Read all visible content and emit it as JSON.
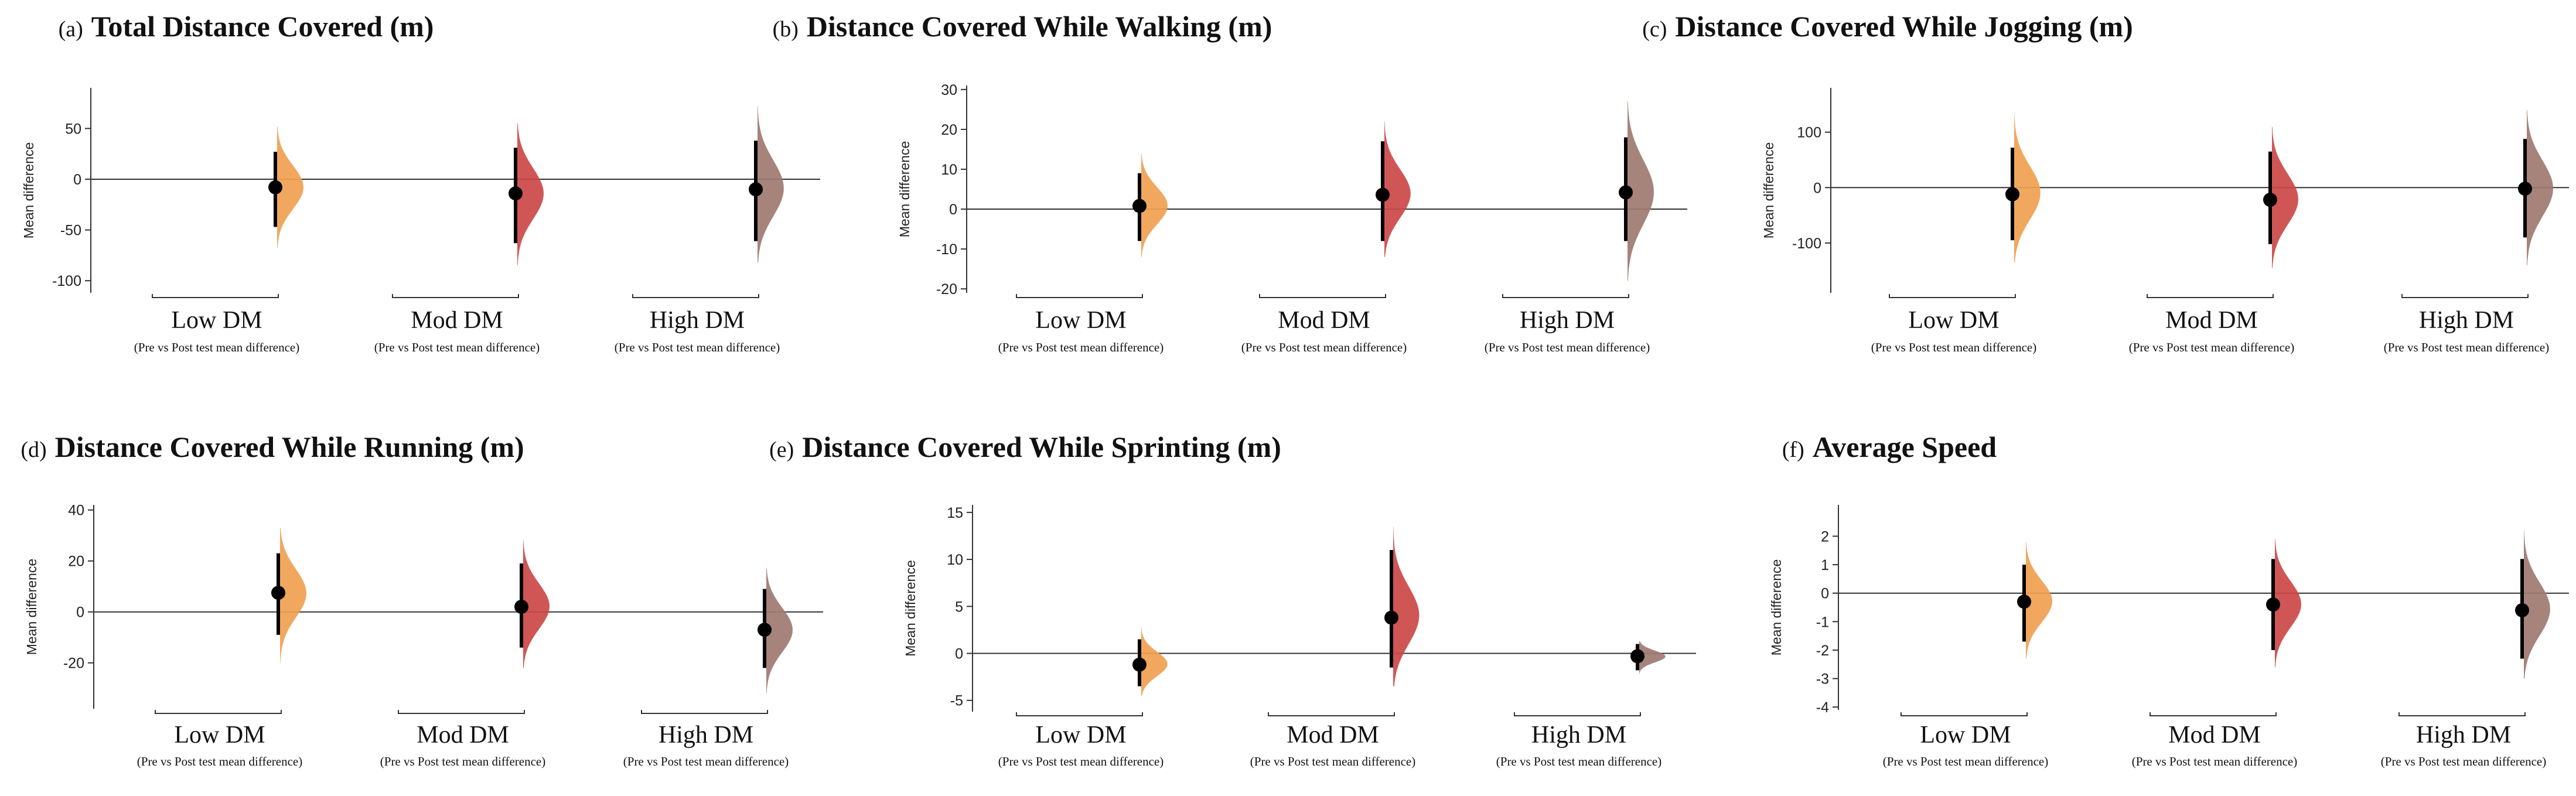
{
  "chart_data": [
    {
      "type": "estimation-plot",
      "letter": "(a)",
      "title": "Total Distance Covered (m)",
      "ylabel": "Mean difference",
      "ylim": [
        -112,
        90
      ],
      "yticks": [
        50,
        0,
        -50,
        -100
      ],
      "groups": [
        {
          "label": "Low DM",
          "sublabel": "(Pre vs Post test mean difference)",
          "color": "#F0A050",
          "mean": -8,
          "ci": [
            -47,
            27
          ],
          "dist": [
            -68,
            52
          ]
        },
        {
          "label": "Mod DM",
          "sublabel": "(Pre vs Post test mean difference)",
          "color": "#CC4848",
          "mean": -14,
          "ci": [
            -63,
            31
          ],
          "dist": [
            -85,
            55
          ]
        },
        {
          "label": "High DM",
          "sublabel": "(Pre vs Post test mean difference)",
          "color": "#9E7A70",
          "mean": -10,
          "ci": [
            -61,
            38
          ],
          "dist": [
            -82,
            72
          ]
        }
      ]
    },
    {
      "type": "estimation-plot",
      "letter": "(b)",
      "title": "Distance Covered While Walking (m)",
      "ylabel": "Mean difference",
      "ylim": [
        -21,
        31
      ],
      "yticks": [
        30,
        20,
        10,
        0,
        -10,
        -20
      ],
      "groups": [
        {
          "label": "Low DM",
          "sublabel": "(Pre vs Post test mean difference)",
          "color": "#F0A050",
          "mean": 0.8,
          "ci": [
            -8,
            9
          ],
          "dist": [
            -12,
            14
          ]
        },
        {
          "label": "Mod DM",
          "sublabel": "(Pre vs Post test mean difference)",
          "color": "#CC4848",
          "mean": 3.6,
          "ci": [
            -8,
            17
          ],
          "dist": [
            -12,
            22
          ]
        },
        {
          "label": "High DM",
          "sublabel": "(Pre vs Post test mean difference)",
          "color": "#9E7A70",
          "mean": 4.2,
          "ci": [
            -8,
            18
          ],
          "dist": [
            -18,
            27
          ]
        }
      ]
    },
    {
      "type": "estimation-plot",
      "letter": "(c)",
      "title": "Distance Covered While Jogging (m)",
      "ylabel": "Mean difference",
      "ylim": [
        -190,
        180
      ],
      "yticks": [
        100,
        0,
        -100
      ],
      "groups": [
        {
          "label": "Low DM",
          "sublabel": "(Pre vs Post test mean difference)",
          "color": "#F0A050",
          "mean": -12,
          "ci": [
            -95,
            72
          ],
          "dist": [
            -135,
            135
          ]
        },
        {
          "label": "Mod DM",
          "sublabel": "(Pre vs Post test mean difference)",
          "color": "#CC4848",
          "mean": -22,
          "ci": [
            -102,
            65
          ],
          "dist": [
            -145,
            110
          ]
        },
        {
          "label": "High DM",
          "sublabel": "(Pre vs Post test mean difference)",
          "color": "#9E7A70",
          "mean": -2,
          "ci": [
            -90,
            88
          ],
          "dist": [
            -140,
            140
          ]
        }
      ]
    },
    {
      "type": "estimation-plot",
      "letter": "(d)",
      "title": "Distance Covered While Running (m)",
      "ylabel": "Mean difference",
      "ylim": [
        -38,
        42
      ],
      "yticks": [
        40,
        20,
        0,
        -20
      ],
      "groups": [
        {
          "label": "Low DM",
          "sublabel": "(Pre vs Post test mean difference)",
          "color": "#F0A050",
          "mean": 7.5,
          "ci": [
            -9,
            23
          ],
          "dist": [
            -20,
            33
          ]
        },
        {
          "label": "Mod DM",
          "sublabel": "(Pre vs Post test mean difference)",
          "color": "#CC4848",
          "mean": 2,
          "ci": [
            -14,
            19
          ],
          "dist": [
            -22,
            28
          ]
        },
        {
          "label": "High DM",
          "sublabel": "(Pre vs Post test mean difference)",
          "color": "#9E7A70",
          "mean": -7,
          "ci": [
            -22,
            9
          ],
          "dist": [
            -32,
            17
          ]
        }
      ]
    },
    {
      "type": "estimation-plot",
      "letter": "(e)",
      "title": "Distance Covered While Sprinting (m)",
      "ylabel": "Mean difference",
      "ylim": [
        -6.2,
        15.8
      ],
      "yticks": [
        15,
        10,
        5,
        0,
        -5
      ],
      "groups": [
        {
          "label": "Low DM",
          "sublabel": "(Pre vs Post test mean difference)",
          "color": "#F0A050",
          "mean": -1.2,
          "ci": [
            -3.5,
            1.5
          ],
          "dist": [
            -4.5,
            2.8
          ]
        },
        {
          "label": "Mod DM",
          "sublabel": "(Pre vs Post test mean difference)",
          "color": "#CC4848",
          "mean": 3.8,
          "ci": [
            -1.5,
            11
          ],
          "dist": [
            -3.5,
            13.5
          ]
        },
        {
          "label": "High DM",
          "sublabel": "(Pre vs Post test mean difference)",
          "color": "#9E7A70",
          "mean": -0.3,
          "ci": [
            -1.8,
            1
          ],
          "dist": [
            -2.2,
            1.3
          ]
        }
      ]
    },
    {
      "type": "estimation-plot",
      "letter": "(f)",
      "title": "Average Speed",
      "ylabel": "Mean difference",
      "ylim": [
        -4.1,
        3.1
      ],
      "yticks": [
        2,
        1,
        0,
        -1,
        -2,
        -3,
        -4
      ],
      "groups": [
        {
          "label": "Low DM",
          "sublabel": "(Pre vs Post test mean difference)",
          "color": "#F0A050",
          "mean": -0.3,
          "ci": [
            -1.7,
            1
          ],
          "dist": [
            -2.3,
            1.8
          ]
        },
        {
          "label": "Mod DM",
          "sublabel": "(Pre vs Post test mean difference)",
          "color": "#CC4848",
          "mean": -0.4,
          "ci": [
            -2,
            1.2
          ],
          "dist": [
            -2.6,
            1.9
          ]
        },
        {
          "label": "High DM",
          "sublabel": "(Pre vs Post test mean difference)",
          "color": "#9E7A70",
          "mean": -0.6,
          "ci": [
            -2.3,
            1.2
          ],
          "dist": [
            -3,
            2.2
          ]
        }
      ]
    }
  ]
}
